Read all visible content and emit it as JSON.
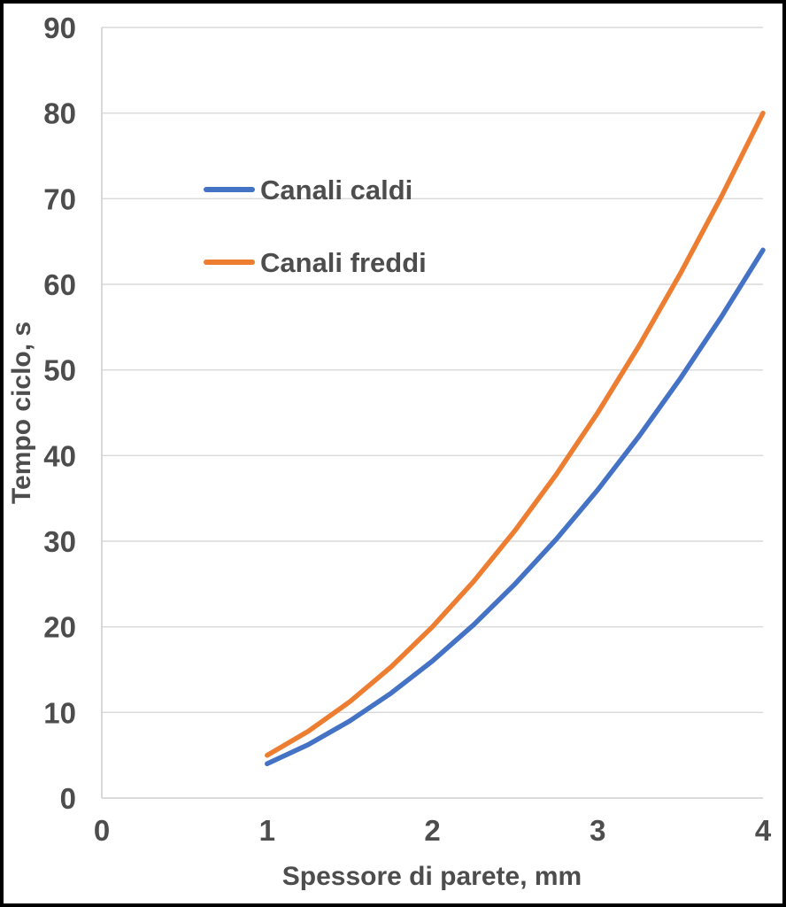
{
  "chart_data": {
    "type": "line",
    "title": "",
    "xlabel": "Spessore di parete, mm",
    "ylabel": "Tempo ciclo, s",
    "xlim": [
      0,
      4
    ],
    "ylim": [
      0,
      90
    ],
    "x_ticks": [
      0,
      1,
      2,
      3,
      4
    ],
    "y_ticks": [
      0,
      10,
      20,
      30,
      40,
      50,
      60,
      70,
      80,
      90
    ],
    "grid": "horizontal-only",
    "legend_position": "inside-upper-left",
    "x": [
      1,
      1.25,
      1.5,
      1.75,
      2,
      2.25,
      2.5,
      2.75,
      3,
      3.25,
      3.5,
      3.75,
      4
    ],
    "series": [
      {
        "name": "Canali caldi",
        "color": "#4472C4",
        "values": [
          4,
          6.25,
          9,
          12.25,
          16,
          20.25,
          25,
          30.25,
          36,
          42.25,
          49,
          56.25,
          64
        ]
      },
      {
        "name": "Canali freddi",
        "color": "#ED7D31",
        "values": [
          5,
          7.81,
          11.25,
          15.31,
          20,
          25.31,
          31.25,
          37.81,
          45,
          52.81,
          61.25,
          70.31,
          80
        ]
      }
    ]
  },
  "colors": {
    "text": "#4d4d4d",
    "gridline": "#d9d9d9",
    "axis_line": "#cfcfcf",
    "frame": "#000000",
    "background": "#ffffff",
    "series_caldi": "#4472C4",
    "series_freddi": "#ED7D31"
  }
}
